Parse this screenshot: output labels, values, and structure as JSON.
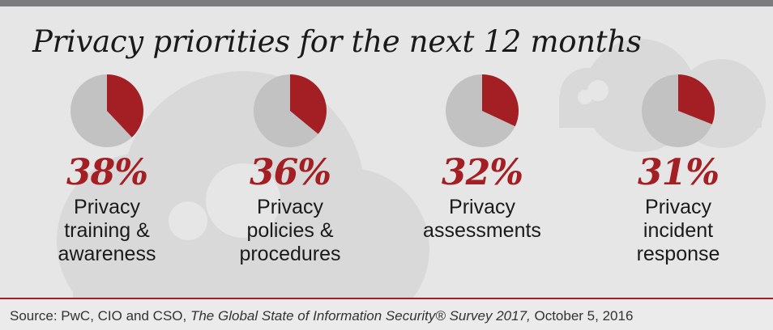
{
  "title": "Privacy priorities for the next 12 months",
  "colors": {
    "accent": "#a31f24",
    "pie_remainder": "#c2c2c2",
    "background": "#e6e6e6",
    "top_bar": "#7c7c7e"
  },
  "chart_data": {
    "type": "pie",
    "title": "Privacy priorities for the next 12 months",
    "items": [
      {
        "label": "Privacy\ntraining &\nawareness",
        "value": 38,
        "display": "38%"
      },
      {
        "label": "Privacy\npolicies &\nprocedures",
        "value": 36,
        "display": "36%"
      },
      {
        "label": "Privacy\nassessments",
        "value": 32,
        "display": "32%"
      },
      {
        "label": "Privacy\nincident\nresponse",
        "value": 31,
        "display": "31%"
      }
    ]
  },
  "source": {
    "prefix": "Source: PwC, CIO and CSO, ",
    "publication": "The Global State of Information Security® Survey 2017,",
    "date": " October 5, 2016"
  }
}
